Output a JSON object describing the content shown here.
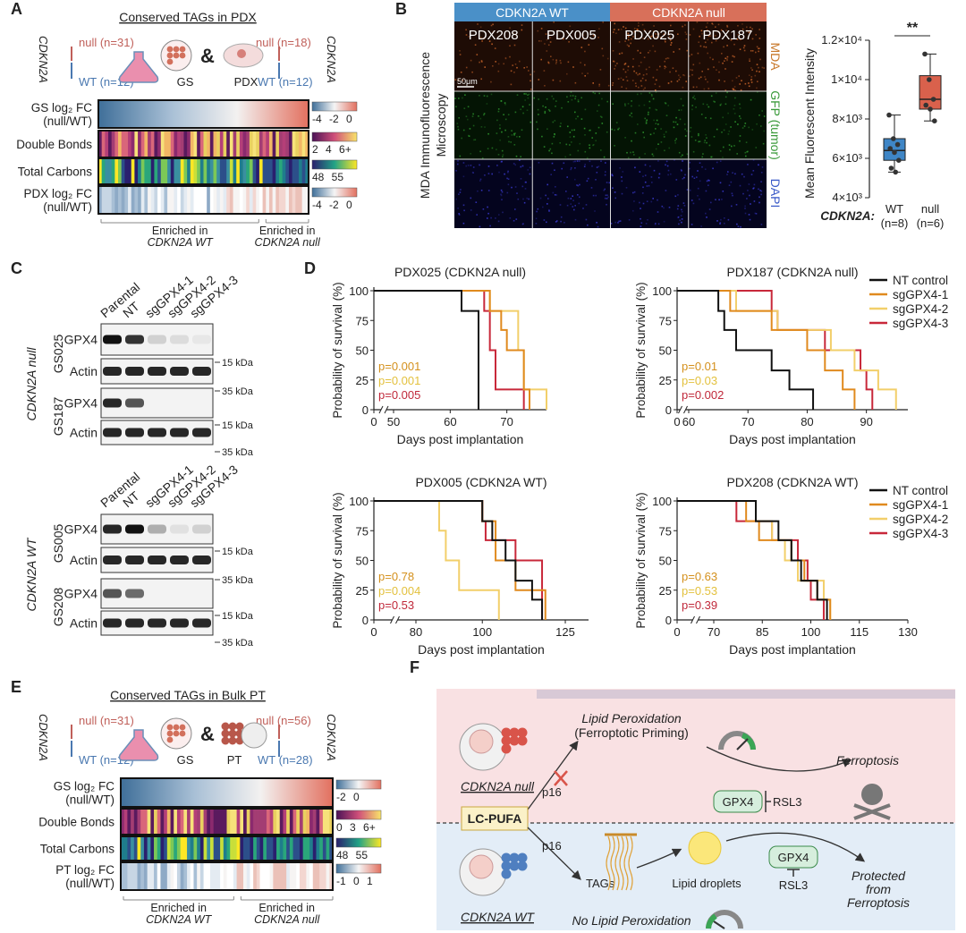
{
  "panel_a": {
    "letter": "A",
    "title": "Conserved TAGs in PDX",
    "gene_left": "CDKN2A",
    "gene_right": "CDKN2A",
    "null_left": "null (n=31)",
    "wt_left": "WT (n=12)",
    "model_left": "GS",
    "and": "&",
    "model_right": "PDX",
    "null_right": "null (n=18)",
    "wt_right": "WT (n=12)",
    "rows": [
      {
        "label": [
          "GS log₂ FC",
          "(null/WT)"
        ],
        "legend": "-4 -2 0"
      },
      {
        "label": [
          "Double Bonds"
        ],
        "legend": "2 4 6+"
      },
      {
        "label": [
          "Total Carbons"
        ],
        "legend": "48 55"
      },
      {
        "label": [
          "PDX log₂ FC",
          "(null/WT)"
        ],
        "legend": "-4 -2 0"
      }
    ],
    "enriched": [
      [
        "Enriched in",
        "CDKN2A WT"
      ],
      [
        "Enriched in",
        "CDKN2A null"
      ]
    ]
  },
  "panel_b": {
    "letter": "B",
    "groups": [
      "CDKN2A WT",
      "CDKN2A null"
    ],
    "samples": [
      "PDX208",
      "PDX005",
      "PDX025",
      "PDX187"
    ],
    "scale_bar": "50μm",
    "side_title": [
      "MDA Immunofluorescence",
      "Microscopy"
    ],
    "channels": [
      "MDA",
      "GFP (tumor)",
      "DAPI"
    ]
  },
  "panel_c": {
    "letter": "C",
    "groups": [
      {
        "label": "CDKN2A null",
        "lanes": [
          "Parental",
          "NT",
          "sgGPX4-1",
          "sgGPX4-2",
          "sgGPX4-3"
        ],
        "blots": [
          {
            "sample": "GS025",
            "rows": [
              {
                "protein": "GPX4",
                "marker": "15 kDa"
              },
              {
                "protein": "Actin",
                "marker": "35 kDa"
              }
            ]
          },
          {
            "sample": "GS187",
            "rows": [
              {
                "protein": "GPX4",
                "marker": "15 kDa"
              },
              {
                "protein": "Actin",
                "marker": "35 kDa"
              }
            ]
          }
        ]
      },
      {
        "label": "CDKN2A WT",
        "lanes": [
          "Parental",
          "NT",
          "sgGPX4-1",
          "sgGPX4-2",
          "sgGPX4-3"
        ],
        "blots": [
          {
            "sample": "GS005",
            "rows": [
              {
                "protein": "GPX4",
                "marker": "15 kDa"
              },
              {
                "protein": "Actin",
                "marker": "35 kDa"
              }
            ]
          },
          {
            "sample": "GS208",
            "rows": [
              {
                "protein": "GPX4",
                "marker": "15 kDa"
              },
              {
                "protein": "Actin",
                "marker": "35 kDa"
              }
            ]
          }
        ]
      }
    ]
  },
  "panel_d": {
    "letter": "D"
  },
  "panel_e": {
    "letter": "E",
    "title": "Conserved TAGs in Bulk PT",
    "gene_left": "CDKN2A",
    "gene_right": "CDKN2A",
    "null_left": "null (n=31)",
    "wt_left": "WT (n=12)",
    "model_left": "GS",
    "and": "&",
    "model_right": "PT",
    "null_right": "null (n=56)",
    "wt_right": "WT (n=28)",
    "rows": [
      {
        "label": [
          "GS log₂ FC",
          "(null/WT)"
        ],
        "legend": "-2 0"
      },
      {
        "label": [
          "Double Bonds"
        ],
        "legend": "0 3 6+"
      },
      {
        "label": [
          "Total Carbons"
        ],
        "legend": "48 55"
      },
      {
        "label": [
          "PT log₂ FC",
          "(null/WT)"
        ],
        "legend": "-1 0 1"
      }
    ],
    "enriched": [
      [
        "Enriched in",
        "CDKN2A WT"
      ],
      [
        "Enriched in",
        "CDKN2A null"
      ]
    ]
  },
  "panel_f": {
    "letter": "F",
    "lipid_peroxidation": "Lipid Peroxidation",
    "priming": "(Ferroptotic Priming)",
    "ferroptosis": "Ferroptosis",
    "null_label": "CDKN2A null",
    "p16_top": "p16",
    "gpx4_top": "GPX4",
    "rsl3_top": "RSL3",
    "lc_pufa": "LC-PUFA",
    "p16_bottom": "p16",
    "tags": "TAGs",
    "lipid_droplets": "Lipid droplets",
    "gpx4_bottom": "GPX4",
    "rsl3_bottom": "RSL3",
    "protected": [
      "Protected",
      "from",
      "Ferroptosis"
    ],
    "wt_label": "CDKN2A WT",
    "no_lipid_peroxidation": "No Lipid Peroxidation"
  },
  "chart_data": [
    {
      "type": "box",
      "ylabel": "Mean Fluorescent Intensity",
      "xlabel": "CDKN2A:",
      "significance": "**",
      "categories": [
        "WT",
        "null"
      ],
      "category_notes": [
        "(n=8)",
        "(n=6)"
      ],
      "ylim": [
        4000,
        12000
      ],
      "yticks": [
        {
          "value": 4000,
          "label": "4×10³"
        },
        {
          "value": 6000,
          "label": "6×10³"
        },
        {
          "value": 8000,
          "label": "8×10³"
        },
        {
          "value": 10000,
          "label": "1×10⁴"
        },
        {
          "value": 12000,
          "label": "1.2×10⁴"
        }
      ],
      "boxes": [
        {
          "color": "#3f86c6",
          "min": 5300,
          "q1": 5900,
          "median": 6400,
          "q3": 7000,
          "max": 8200,
          "points": [
            8200,
            7000,
            6700,
            6500,
            6300,
            5900,
            5500,
            5300
          ]
        },
        {
          "color": "#d9614c",
          "min": 7900,
          "q1": 8500,
          "median": 9000,
          "q3": 10200,
          "max": 11300,
          "points": [
            11300,
            10000,
            9000,
            8700,
            8500,
            7900
          ]
        }
      ]
    },
    {
      "type": "step",
      "title": "PDX025 (CDKN2A null)",
      "xlabel": "Days post implantation",
      "ylabel": "Probability of survival (%)",
      "xlim": [
        50,
        77
      ],
      "xticks": [
        0,
        50,
        60,
        70
      ],
      "x_break": true,
      "ylim": [
        0,
        100
      ],
      "yticks": [
        0,
        25,
        50,
        75,
        100
      ],
      "legend": null,
      "series": [
        {
          "name": "NT control",
          "color": "#111111",
          "x": [
            50,
            62,
            65
          ],
          "values": [
            100,
            83,
            0
          ]
        },
        {
          "name": "sgGPX4-1",
          "color": "#e08a1e",
          "x": [
            50,
            67,
            69,
            70,
            73,
            74
          ],
          "values": [
            100,
            83,
            67,
            50,
            17,
            0
          ]
        },
        {
          "name": "sgGPX4-2",
          "color": "#f2cf6a",
          "x": [
            50,
            67,
            72,
            73,
            77
          ],
          "values": [
            100,
            83,
            50,
            17,
            0
          ]
        },
        {
          "name": "sgGPX4-3",
          "color": "#c8283a",
          "x": [
            50,
            66,
            67,
            68,
            73
          ],
          "values": [
            100,
            83,
            50,
            17,
            0
          ]
        }
      ],
      "pvalues": [
        {
          "label": "p=0.001",
          "color": "#d4901c"
        },
        {
          "label": "p=0.001",
          "color": "#e3c13e"
        },
        {
          "label": "p=0.005",
          "color": "#c0283a"
        }
      ]
    },
    {
      "type": "step",
      "title": "PDX187 (CDKN2A null)",
      "xlabel": "Days post implantation",
      "ylabel": "Probability of survival (%)",
      "xlim": [
        60,
        97
      ],
      "xticks": [
        0,
        60,
        70,
        80,
        90
      ],
      "x_break": true,
      "ylim": [
        0,
        100
      ],
      "yticks": [
        0,
        25,
        50,
        75,
        100
      ],
      "legend": "right",
      "series": [
        {
          "name": "NT control",
          "color": "#111111",
          "x": [
            60,
            65,
            66,
            68,
            74,
            77,
            81
          ],
          "values": [
            100,
            83,
            67,
            50,
            33,
            17,
            0
          ]
        },
        {
          "name": "sgGPX4-1",
          "color": "#e08a1e",
          "x": [
            60,
            67,
            74,
            80,
            83,
            86,
            88
          ],
          "values": [
            100,
            83,
            67,
            50,
            33,
            17,
            0
          ]
        },
        {
          "name": "sgGPX4-2",
          "color": "#f2cf6a",
          "x": [
            60,
            68,
            75,
            84,
            88,
            92,
            95
          ],
          "values": [
            100,
            83,
            67,
            50,
            33,
            17,
            0
          ]
        },
        {
          "name": "sgGPX4-3",
          "color": "#c8283a",
          "x": [
            60,
            74,
            75,
            83,
            89,
            90,
            91
          ],
          "values": [
            100,
            83,
            67,
            50,
            33,
            17,
            0
          ]
        }
      ],
      "pvalues": [
        {
          "label": "p=0.01",
          "color": "#d4901c"
        },
        {
          "label": "p=0.03",
          "color": "#e3c13e"
        },
        {
          "label": "p=0.002",
          "color": "#c0283a"
        }
      ]
    },
    {
      "type": "step",
      "title": "PDX005 (CDKN2A WT)",
      "xlabel": "Days post implantation",
      "ylabel": "Probability of survival (%)",
      "xlim": [
        80,
        132
      ],
      "xticks": [
        0,
        80,
        100,
        125
      ],
      "x_break": true,
      "ylim": [
        0,
        100
      ],
      "yticks": [
        0,
        25,
        50,
        75,
        100
      ],
      "legend": null,
      "series": [
        {
          "name": "NT control",
          "color": "#111111",
          "x": [
            80,
            100,
            103,
            107,
            110,
            115,
            118
          ],
          "values": [
            100,
            83,
            67,
            50,
            33,
            17,
            0
          ]
        },
        {
          "name": "sgGPX4-1",
          "color": "#e08a1e",
          "x": [
            80,
            100,
            104,
            110,
            119
          ],
          "values": [
            100,
            83,
            50,
            25,
            0
          ]
        },
        {
          "name": "sgGPX4-2",
          "color": "#f2cf6a",
          "x": [
            80,
            87,
            89,
            93,
            105
          ],
          "values": [
            100,
            75,
            50,
            25,
            0
          ]
        },
        {
          "name": "sgGPX4-3",
          "color": "#c8283a",
          "x": [
            80,
            100,
            101,
            110,
            118
          ],
          "values": [
            100,
            83,
            67,
            50,
            0
          ]
        }
      ],
      "pvalues": [
        {
          "label": "p=0.78",
          "color": "#d4901c"
        },
        {
          "label": "p=0.004",
          "color": "#e3c13e"
        },
        {
          "label": "p=0.53",
          "color": "#c0283a"
        }
      ]
    },
    {
      "type": "step",
      "title": "PDX208 (CDKN2A WT)",
      "xlabel": "Days post implantation",
      "ylabel": "Probability of survival (%)",
      "xlim": [
        70,
        130
      ],
      "xticks": [
        0,
        70,
        85,
        100,
        115,
        130
      ],
      "x_break": true,
      "ylim": [
        0,
        100
      ],
      "yticks": [
        0,
        25,
        50,
        75,
        100
      ],
      "legend": "right",
      "series": [
        {
          "name": "NT control",
          "color": "#111111",
          "x": [
            70,
            83,
            90,
            94,
            97,
            102,
            105
          ],
          "values": [
            100,
            83,
            67,
            50,
            33,
            17,
            0
          ]
        },
        {
          "name": "sgGPX4-1",
          "color": "#e08a1e",
          "x": [
            70,
            80,
            84,
            94,
            98,
            102,
            106
          ],
          "values": [
            100,
            83,
            67,
            50,
            33,
            17,
            0
          ]
        },
        {
          "name": "sgGPX4-2",
          "color": "#f2cf6a",
          "x": [
            70,
            83,
            88,
            92,
            96,
            104,
            106
          ],
          "values": [
            100,
            83,
            67,
            50,
            33,
            17,
            0
          ]
        },
        {
          "name": "sgGPX4-3",
          "color": "#c8283a",
          "x": [
            70,
            77,
            88,
            96,
            99,
            100,
            104
          ],
          "values": [
            100,
            83,
            67,
            50,
            33,
            17,
            0
          ]
        }
      ],
      "pvalues": [
        {
          "label": "p=0.63",
          "color": "#d4901c"
        },
        {
          "label": "p=0.53",
          "color": "#e3c13e"
        },
        {
          "label": "p=0.39",
          "color": "#c0283a"
        }
      ]
    }
  ]
}
